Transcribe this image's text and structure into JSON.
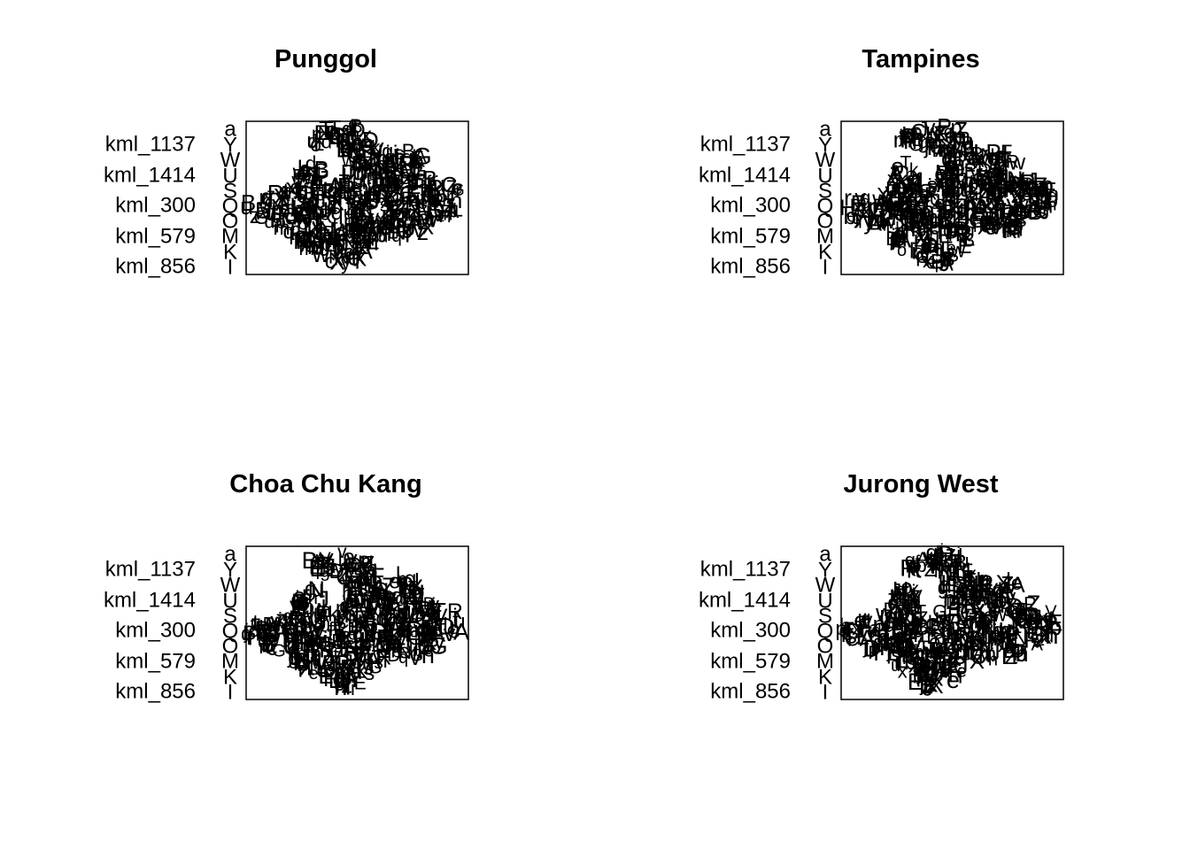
{
  "chart_data": [
    {
      "type": "scatter",
      "title": "Punggol",
      "xlabel": "",
      "ylabel": "",
      "yticks": [
        "kml_1137",
        "kml_1414",
        "kml_300",
        "kml_579",
        "kml_856"
      ],
      "edge_labels": [
        "a",
        "Y",
        "W",
        "U",
        "S",
        "Q",
        "O",
        "M",
        "K",
        "I"
      ],
      "point_labels": [
        "A",
        "B",
        "C",
        "D",
        "E",
        "F",
        "G",
        "H",
        "J",
        "L",
        "N",
        "P",
        "R",
        "T",
        "V",
        "X",
        "Z",
        "b",
        "c",
        "d",
        "e",
        "f",
        "g",
        "h",
        "i",
        "j",
        "k",
        "l",
        "m",
        "n",
        "o",
        "p",
        "q",
        "r",
        "s",
        "t",
        "u",
        "v",
        "w",
        "x",
        "y",
        "z"
      ],
      "frame": true
    },
    {
      "type": "scatter",
      "title": "Tampines",
      "xlabel": "",
      "ylabel": "",
      "yticks": [
        "kml_1137",
        "kml_1414",
        "kml_300",
        "kml_579",
        "kml_856"
      ],
      "edge_labels": [
        "a",
        "Y",
        "W",
        "U",
        "S",
        "Q",
        "O",
        "M",
        "K",
        "I"
      ],
      "point_labels": [
        "A",
        "B",
        "C",
        "D",
        "E",
        "F",
        "G",
        "H",
        "J",
        "L",
        "N",
        "P",
        "R",
        "T",
        "V",
        "X",
        "Z",
        "b",
        "c",
        "d",
        "e",
        "f",
        "g",
        "h",
        "i",
        "j",
        "k",
        "l",
        "m",
        "n",
        "o",
        "p",
        "q",
        "r",
        "s",
        "t",
        "u",
        "v",
        "w",
        "x",
        "y",
        "z"
      ],
      "frame": true
    },
    {
      "type": "scatter",
      "title": "Choa Chu Kang",
      "xlabel": "",
      "ylabel": "",
      "yticks": [
        "kml_1137",
        "kml_1414",
        "kml_300",
        "kml_579",
        "kml_856"
      ],
      "edge_labels": [
        "a",
        "Y",
        "W",
        "U",
        "S",
        "Q",
        "O",
        "M",
        "K",
        "I"
      ],
      "point_labels": [
        "A",
        "B",
        "C",
        "D",
        "E",
        "F",
        "G",
        "H",
        "J",
        "L",
        "N",
        "P",
        "R",
        "T",
        "V",
        "X",
        "Z",
        "b",
        "c",
        "d",
        "e",
        "f",
        "g",
        "h",
        "i",
        "j",
        "k",
        "l",
        "m",
        "n",
        "o",
        "p",
        "q",
        "r",
        "s",
        "t",
        "u",
        "v",
        "w",
        "x",
        "y",
        "z"
      ],
      "frame": true
    },
    {
      "type": "scatter",
      "title": "Jurong West",
      "xlabel": "",
      "ylabel": "",
      "yticks": [
        "kml_1137",
        "kml_1414",
        "kml_300",
        "kml_579",
        "kml_856"
      ],
      "edge_labels": [
        "a",
        "Y",
        "W",
        "U",
        "S",
        "Q",
        "O",
        "M",
        "K",
        "I"
      ],
      "point_labels": [
        "A",
        "B",
        "C",
        "D",
        "E",
        "F",
        "G",
        "H",
        "J",
        "L",
        "N",
        "P",
        "R",
        "T",
        "V",
        "X",
        "Z",
        "b",
        "c",
        "d",
        "e",
        "f",
        "g",
        "h",
        "i",
        "j",
        "k",
        "l",
        "m",
        "n",
        "o",
        "p",
        "q",
        "r",
        "s",
        "t",
        "u",
        "v",
        "w",
        "x",
        "y",
        "z"
      ],
      "frame": true
    }
  ]
}
